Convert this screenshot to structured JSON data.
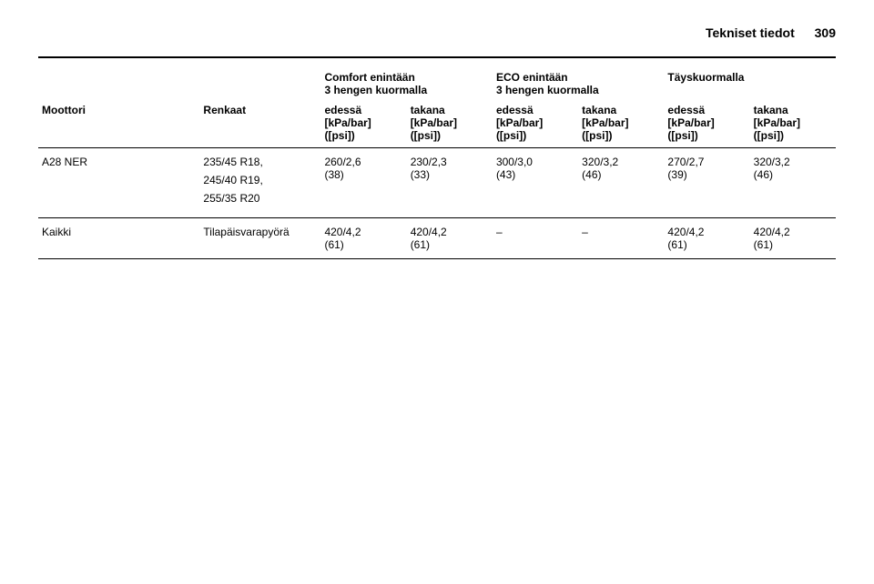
{
  "header": {
    "section": "Tekniset tiedot",
    "page": "309"
  },
  "columnsTop": {
    "engine": "Moottori",
    "tyres": "Renkaat",
    "comfort": "Comfort enintään\n3 hengen kuormalla",
    "eco": "ECO enintään\n3 hengen kuormalla",
    "full": "Täyskuormalla"
  },
  "subFrontRear": {
    "front": "edessä",
    "rear": "takana"
  },
  "unit": "[kPa/bar]\n([psi])",
  "rows": [
    {
      "engine": "A28 NER",
      "tyres": [
        "235/45 R18,",
        "245/40 R19,",
        "255/35 R20"
      ],
      "comfort_front": "260/2,6\n(38)",
      "comfort_rear": "230/2,3\n(33)",
      "eco_front": "300/3,0\n(43)",
      "eco_rear": "320/3,2\n(46)",
      "full_front": "270/2,7\n(39)",
      "full_rear": "320/3,2\n(46)"
    },
    {
      "engine": "Kaikki",
      "tyres": [
        "Tilapäisvarapyörä"
      ],
      "comfort_front": "420/4,2\n(61)",
      "comfort_rear": "420/4,2\n(61)",
      "eco_front": "–",
      "eco_rear": "–",
      "full_front": "420/4,2\n(61)",
      "full_rear": "420/4,2\n(61)"
    }
  ]
}
